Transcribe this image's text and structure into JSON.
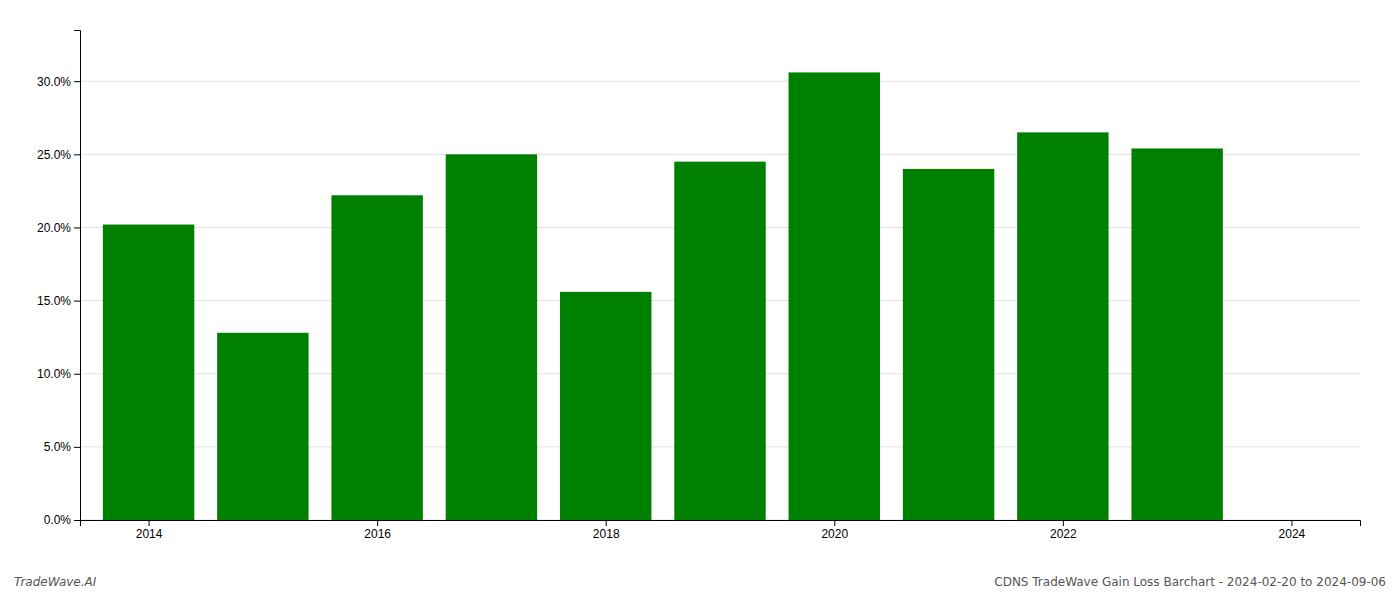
{
  "chart_data": {
    "type": "bar",
    "title": "CDNS TradeWave Gain Loss Barchart - 2024-02-20 to 2024-09-06",
    "annotations": [
      "TradeWave.AI"
    ],
    "x": [
      2014,
      2015,
      2016,
      2017,
      2018,
      2019,
      2020,
      2021,
      2022,
      2023
    ],
    "values": [
      0.202,
      0.128,
      0.222,
      0.25,
      0.156,
      0.245,
      0.306,
      0.24,
      0.265,
      0.254
    ],
    "color": "#008000",
    "xlim": [
      2013.4,
      2024.6
    ],
    "xticks": [
      2014,
      2016,
      2018,
      2020,
      2022,
      2024
    ],
    "ylim": [
      0,
      0.335
    ],
    "yticks": [
      {
        "value": 0.0,
        "label": "0.0%"
      },
      {
        "value": 0.05,
        "label": "5.0%"
      },
      {
        "value": 0.1,
        "label": "10.0%"
      },
      {
        "value": 0.15,
        "label": "15.0%"
      },
      {
        "value": 0.2,
        "label": "20.0%"
      },
      {
        "value": 0.25,
        "label": "25.0%"
      },
      {
        "value": 0.3,
        "label": "30.0%"
      }
    ],
    "grid": true
  }
}
